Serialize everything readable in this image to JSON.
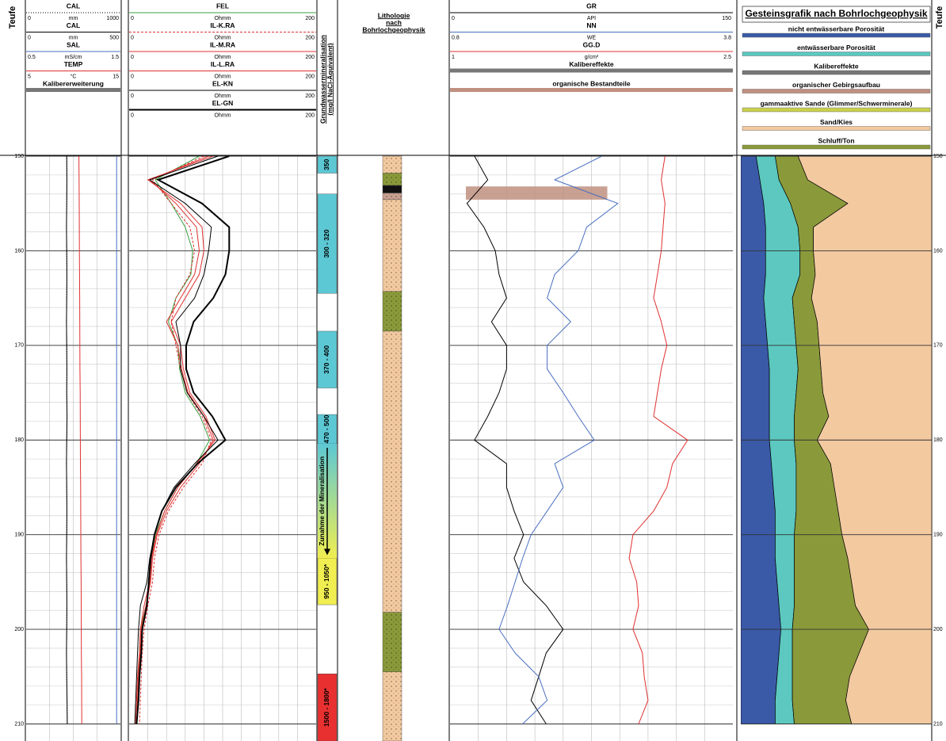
{
  "depth_axis": {
    "label": "Teufe",
    "ylim": [
      150,
      211.8
    ],
    "yticks": [
      150,
      160,
      170,
      180,
      190,
      200,
      210
    ],
    "minor_tick_step": 2,
    "depths": [
      150,
      152.5,
      155,
      157.5,
      160,
      162.5,
      165,
      167.5,
      170,
      172.5,
      175,
      177.5,
      180,
      182.5,
      185,
      187.5,
      190,
      192.5,
      195,
      197.5,
      200,
      202.5,
      205,
      207.5,
      210
    ]
  },
  "chart_data": [
    {
      "type": "line",
      "grid_divisions": 4,
      "series": [
        {
          "name": "CAL",
          "color": "#000000",
          "dash": "dotted",
          "scale": [
            0,
            1000
          ],
          "unit": "mm",
          "values": [
            430,
            432,
            430,
            428,
            430,
            432,
            430,
            428,
            430,
            432,
            430,
            434,
            430,
            428,
            430,
            432,
            430,
            428,
            430,
            432,
            430,
            428,
            430,
            434,
            436
          ]
        },
        {
          "name": "CAL",
          "color": "#000000",
          "scale": [
            0,
            500
          ],
          "unit": "mm",
          "values": [
            215,
            216,
            215,
            214,
            215,
            216,
            215,
            214,
            215,
            216,
            215,
            217,
            215,
            214,
            215,
            216,
            215,
            214,
            215,
            216,
            215,
            214,
            215,
            217,
            218
          ]
        },
        {
          "name": "SAL",
          "color": "#4a6fc0",
          "scale": [
            0.5,
            1.5
          ],
          "unit": "mS/cm",
          "values": [
            1.46,
            1.46,
            1.46,
            1.46,
            1.46,
            1.46,
            1.46,
            1.46,
            1.46,
            1.46,
            1.46,
            1.46,
            1.46,
            1.46,
            1.46,
            1.46,
            1.46,
            1.46,
            1.46,
            1.46,
            1.46,
            1.46,
            1.46,
            1.46,
            1.46
          ]
        },
        {
          "name": "TEMP",
          "color": "#e03030",
          "scale": [
            5,
            15
          ],
          "unit": "°C",
          "values": [
            10.6,
            10.61,
            10.63,
            10.64,
            10.65,
            10.66,
            10.68,
            10.69,
            10.7,
            10.71,
            10.73,
            10.74,
            10.75,
            10.76,
            10.78,
            10.79,
            10.8,
            10.81,
            10.83,
            10.84,
            10.85,
            10.86,
            10.88,
            10.89,
            10.9
          ]
        }
      ],
      "bars": [
        {
          "name": "Kalibererweiterung",
          "color": "#777777"
        }
      ]
    },
    {
      "type": "line",
      "grid_divisions": 10,
      "series": [
        {
          "name": "FEL",
          "color": "#3aa040",
          "scale": [
            0,
            200
          ],
          "unit": "Ohmm",
          "values": [
            75,
            28,
            45,
            60,
            68,
            66,
            50,
            42,
            52,
            54,
            60,
            76,
            86,
            72,
            52,
            38,
            28,
            24,
            22,
            18,
            12,
            11,
            10,
            9,
            8
          ]
        },
        {
          "name": "IL-K.RA",
          "color": "#e03030",
          "dash": "dashed",
          "scale": [
            0,
            200
          ],
          "unit": "Ohmm",
          "values": [
            80,
            25,
            45,
            65,
            70,
            65,
            50,
            45,
            50,
            55,
            62,
            78,
            88,
            78,
            58,
            42,
            32,
            27,
            25,
            20,
            16,
            14,
            13,
            12,
            11
          ]
        },
        {
          "name": "IL-M.RA",
          "color": "#e03030",
          "scale": [
            0,
            200
          ],
          "unit": "Ohmm",
          "values": [
            85,
            22,
            50,
            72,
            75,
            70,
            55,
            40,
            52,
            56,
            63,
            80,
            90,
            75,
            55,
            40,
            30,
            25,
            23,
            18,
            13,
            12,
            10,
            9,
            8
          ]
        },
        {
          "name": "IL-L.RA",
          "color": "#e03030",
          "scale": [
            0,
            200
          ],
          "unit": "Ohmm",
          "values": [
            90,
            20,
            55,
            78,
            80,
            75,
            60,
            45,
            55,
            58,
            65,
            82,
            92,
            72,
            52,
            38,
            29,
            24,
            22,
            16,
            12,
            11,
            9,
            8,
            7
          ]
        },
        {
          "name": "EL-KN",
          "color": "#000000",
          "scale": [
            0,
            200
          ],
          "unit": "Ohmm",
          "values": [
            95,
            22,
            60,
            88,
            85,
            80,
            70,
            50,
            55,
            55,
            62,
            80,
            95,
            70,
            48,
            35,
            27,
            22,
            19,
            12,
            10,
            9,
            8,
            7,
            6
          ]
        },
        {
          "name": "EL-GN",
          "color": "#000000",
          "width": 2,
          "scale": [
            0,
            200
          ],
          "unit": "Ohmm",
          "values": [
            107,
            31,
            78,
            107,
            107,
            103,
            90,
            69,
            61,
            61,
            69,
            89,
            103,
            73,
            50,
            35,
            27,
            23,
            21,
            19,
            14,
            13,
            11,
            10,
            8
          ]
        }
      ]
    },
    {
      "type": "interval",
      "title": [
        "Grundwassermineralisation",
        "(mg/l NaCl-Äquivalent)"
      ],
      "intervals": [
        {
          "from": 150,
          "to": 151.8,
          "label": "350",
          "color": "#5cc8d4"
        },
        {
          "from": 154,
          "to": 164.5,
          "label": "300 - 320",
          "color": "#5cc8d4"
        },
        {
          "from": 168.5,
          "to": 174.5,
          "label": "370 - 400",
          "color": "#5cc8d4"
        },
        {
          "from": 177.3,
          "to": 180.4,
          "label": "470 - 500",
          "color": "#5cc8d4"
        },
        {
          "from": 192.5,
          "to": 197.4,
          "label": "950 - 1050*",
          "color": "#f0ee50"
        },
        {
          "from": 204.7,
          "to": 211.8,
          "label": "1500 - 1800*",
          "color": "#e83030"
        }
      ],
      "arrow": {
        "from": 180.4,
        "to": 192.5,
        "label": "Zunahme der Mineralisation",
        "colors": [
          "#5cc8d4",
          "#f0ee50"
        ]
      }
    },
    {
      "type": "interval",
      "title": [
        "Lithologie",
        "nach",
        "Bohrlochgeophysik"
      ],
      "intervals": [
        {
          "from": 150,
          "to": 151.8,
          "color": "#f3c9a0"
        },
        {
          "from": 151.8,
          "to": 153.1,
          "color": "#8a9a3a"
        },
        {
          "from": 153.1,
          "to": 153.9,
          "color": "#111111"
        },
        {
          "from": 153.9,
          "to": 154.6,
          "color": "#c8a090"
        },
        {
          "from": 154.6,
          "to": 164.3,
          "color": "#f3c9a0"
        },
        {
          "from": 164.3,
          "to": 168.5,
          "color": "#8a9a3a"
        },
        {
          "from": 168.5,
          "to": 198.2,
          "color": "#f3c9a0"
        },
        {
          "from": 198.2,
          "to": 204.5,
          "color": "#8a9a3a"
        },
        {
          "from": 204.5,
          "to": 211.8,
          "color": "#f3c9a0"
        }
      ]
    },
    {
      "type": "line",
      "grid_divisions": 10,
      "series": [
        {
          "name": "GR",
          "color": "#000000",
          "scale": [
            0,
            150
          ],
          "unit": "API",
          "values": [
            13,
            20,
            9,
            18,
            24,
            26,
            30,
            22,
            30,
            30,
            26,
            20,
            13,
            30,
            30,
            34,
            39,
            34,
            39,
            51,
            60,
            51,
            47,
            43,
            51
          ]
        },
        {
          "name": "NN",
          "color": "#4a6fc0",
          "scale": [
            0.8,
            3.8
          ],
          "unit": "WE",
          "values": [
            2.41,
            1.91,
            2.58,
            2.25,
            2.16,
            1.91,
            1.83,
            2.08,
            1.83,
            1.83,
            2.0,
            2.16,
            2.33,
            1.91,
            2.0,
            1.83,
            1.66,
            1.57,
            1.49,
            1.41,
            1.32,
            1.49,
            1.74,
            1.83,
            1.57
          ]
        },
        {
          "name": "GG.D",
          "color": "#e03030",
          "scale": [
            1,
            2.5
          ],
          "unit": "g/cm³",
          "values": [
            2.14,
            2.12,
            2.14,
            2.13,
            2.12,
            2.1,
            2.08,
            2.12,
            2.15,
            2.12,
            2.1,
            2.08,
            2.26,
            2.18,
            2.15,
            2.08,
            1.97,
            1.95,
            1.99,
            2.0,
            1.97,
            2.02,
            2.03,
            2.05,
            2.0
          ]
        }
      ],
      "bars": [
        {
          "name": "Kalibereffekte",
          "color": "#777777"
        },
        {
          "name": "organische Bestandteile",
          "color": "#c09080"
        }
      ],
      "organic_intervals": [
        {
          "from": 153.2,
          "to": 154.6
        }
      ]
    },
    {
      "type": "area",
      "title": "Gesteinsgrafik nach Bohrlochgeophysik",
      "xlim": [
        0,
        100
      ],
      "stack_order": [
        0,
        1,
        6,
        5
      ],
      "series": [
        {
          "name": "nicht entwässerbare Porosität",
          "color": "#3a5aa8",
          "values": [
            8,
            10,
            12,
            13,
            13,
            13,
            12,
            13,
            14,
            15,
            15,
            15,
            15,
            16,
            17,
            18,
            18,
            18,
            19,
            20,
            21,
            20,
            19,
            18,
            18
          ]
        },
        {
          "name": "entwässerbare Porosität",
          "color": "#5cc8c0",
          "values": [
            10,
            10,
            14,
            17,
            18,
            18,
            15,
            15,
            15,
            15,
            14,
            13,
            13,
            13,
            12,
            11,
            10,
            10,
            9,
            8,
            6,
            7,
            8,
            9,
            10
          ]
        },
        {
          "name": "Kalibereffekte",
          "color": "#777777"
        },
        {
          "name": "organischer Gebirgsaufbau",
          "color": "#c09080"
        },
        {
          "name": "gammaaktive Sande (Glimmer/Schwerminerale)",
          "color": "#c8d050"
        },
        {
          "name": "Sand/Kies",
          "color": "#f3c9a0",
          "values": [
            70,
            65,
            44,
            62,
            62,
            61,
            63,
            60,
            59,
            58,
            57,
            54,
            60,
            53,
            51,
            49,
            47,
            44,
            42,
            40,
            33,
            38,
            43,
            45,
            42
          ]
        },
        {
          "name": "Schluff/Ton",
          "color": "#8a9a3a",
          "values": [
            12,
            15,
            30,
            8,
            7,
            8,
            10,
            12,
            12,
            12,
            14,
            18,
            12,
            18,
            20,
            22,
            25,
            28,
            30,
            32,
            40,
            35,
            30,
            28,
            30
          ]
        }
      ]
    }
  ]
}
